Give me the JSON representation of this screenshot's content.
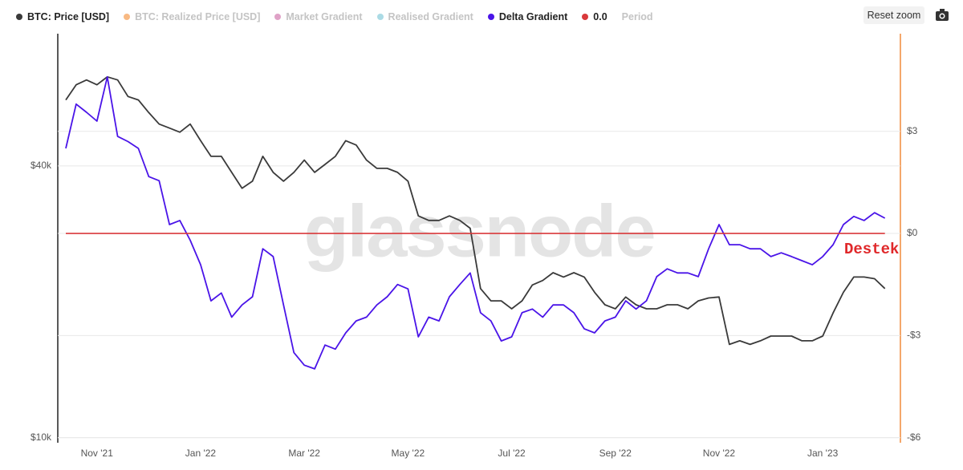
{
  "chart_data": {
    "type": "line",
    "watermark": "glassnode",
    "annotation": "Destek",
    "reset_button": "Reset zoom",
    "categories": [
      null,
      null,
      null,
      "Nov '21",
      null,
      null,
      null,
      null,
      null,
      null,
      null,
      null,
      null,
      "Jan '22",
      null,
      null,
      null,
      null,
      null,
      null,
      null,
      null,
      null,
      "Mar '22",
      null,
      null,
      null,
      null,
      null,
      null,
      null,
      null,
      null,
      "May '22",
      null,
      null,
      null,
      null,
      null,
      null,
      null,
      null,
      null,
      "Jul '22",
      null,
      null,
      null,
      null,
      null,
      null,
      null,
      null,
      null,
      "Sep '22",
      null,
      null,
      null,
      null,
      null,
      null,
      null,
      null,
      null,
      "Nov '22",
      null,
      null,
      null,
      null,
      null,
      null,
      null,
      null,
      null,
      "Jan '23",
      null,
      null,
      null,
      null,
      null,
      null
    ],
    "ylim": [
      9750,
      78500
    ],
    "log_scale": true,
    "yticks": [
      {
        "value": 10000,
        "label": "$10k"
      },
      {
        "value": 40000,
        "label": "$40k"
      }
    ],
    "y2lim": [
      -6.15,
      5.87
    ],
    "y2ticks": [
      {
        "value": -6,
        "label": "-$6"
      },
      {
        "value": -3,
        "label": "-$3"
      },
      {
        "value": 0,
        "label": "$0"
      },
      {
        "value": 3,
        "label": "$3"
      }
    ],
    "grid": true,
    "series": [
      {
        "name": "BTC: Price [USD]",
        "color": "#3a3a3a",
        "axis": "y",
        "values": [
          56000,
          60500,
          62000,
          60500,
          63000,
          62000,
          57000,
          56000,
          52500,
          49500,
          48500,
          47500,
          49500,
          45500,
          42000,
          42000,
          38700,
          35700,
          37000,
          42000,
          38700,
          37000,
          38700,
          41200,
          38700,
          40300,
          42000,
          45500,
          44500,
          41200,
          39500,
          39500,
          38700,
          37000,
          31000,
          30300,
          30300,
          31000,
          30300,
          29100,
          21400,
          20100,
          20100,
          19300,
          20100,
          21800,
          22300,
          23200,
          22700,
          23200,
          22700,
          21000,
          19700,
          19300,
          20500,
          19700,
          19300,
          19300,
          19700,
          19700,
          19300,
          20100,
          20400,
          20500,
          16100,
          16400,
          16100,
          16400,
          16800,
          16800,
          16800,
          16400,
          16400,
          16800,
          18900,
          21000,
          22700,
          22700,
          22500,
          21400
        ]
      },
      {
        "name": "BTC: Realized Price [USD]",
        "color": "#f6a25a",
        "visible": false
      },
      {
        "name": "Market Gradient",
        "color": "#d483b4",
        "visible": false
      },
      {
        "name": "Realised Gradient",
        "color": "#8fcfdc",
        "visible": false
      },
      {
        "name": "Delta Gradient",
        "color": "#4a14e8",
        "axis": "y2",
        "values": [
          2.5,
          3.8,
          3.56,
          3.3,
          4.6,
          2.85,
          2.7,
          2.5,
          1.67,
          1.55,
          0.26,
          0.38,
          -0.2,
          -0.92,
          -1.98,
          -1.75,
          -2.46,
          -2.1,
          -1.86,
          -0.45,
          -0.68,
          -2.1,
          -3.5,
          -3.87,
          -3.98,
          -3.28,
          -3.4,
          -2.92,
          -2.57,
          -2.46,
          -2.1,
          -1.86,
          -1.5,
          -1.63,
          -3.04,
          -2.46,
          -2.57,
          -1.86,
          -1.5,
          -1.16,
          -2.33,
          -2.57,
          -3.16,
          -3.04,
          -2.33,
          -2.22,
          -2.46,
          -2.1,
          -2.1,
          -2.33,
          -2.8,
          -2.92,
          -2.57,
          -2.46,
          -1.98,
          -2.22,
          -1.98,
          -1.27,
          -1.04,
          -1.16,
          -1.16,
          -1.27,
          -0.45,
          0.26,
          -0.33,
          -0.33,
          -0.45,
          -0.45,
          -0.68,
          -0.57,
          -0.68,
          -0.8,
          -0.92,
          -0.68,
          -0.33,
          0.26,
          0.5,
          0.38,
          0.61,
          0.45
        ]
      },
      {
        "name": "0.0",
        "color": "#d9393b",
        "axis": "y2",
        "values": [
          0,
          0,
          0,
          0,
          0,
          0,
          0,
          0,
          0,
          0,
          0,
          0,
          0,
          0,
          0,
          0,
          0,
          0,
          0,
          0,
          0,
          0,
          0,
          0,
          0,
          0,
          0,
          0,
          0,
          0,
          0,
          0,
          0,
          0,
          0,
          0,
          0,
          0,
          0,
          0,
          0,
          0,
          0,
          0,
          0,
          0,
          0,
          0,
          0,
          0,
          0,
          0,
          0,
          0,
          0,
          0,
          0,
          0,
          0,
          0,
          0,
          0,
          0,
          0,
          0,
          0,
          0,
          0,
          0,
          0,
          0,
          0,
          0,
          0,
          0,
          0,
          0,
          0,
          0,
          0
        ]
      },
      {
        "name": "Period",
        "visible": false
      }
    ]
  }
}
